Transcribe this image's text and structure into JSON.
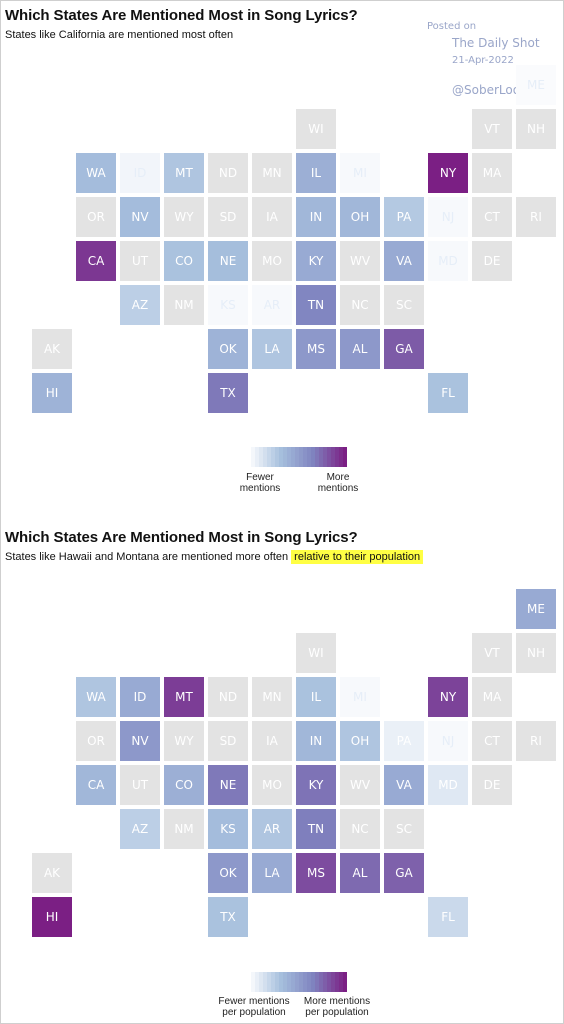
{
  "watermark": {
    "posted_on": "Posted on",
    "site": "The Daily Shot",
    "date": "21-Apr-2022",
    "handle": "@SoberLook"
  },
  "colors": {
    "gray": "#e3e3e3",
    "scale": [
      "#ffffff",
      "#a6bfdd",
      "#7f83bf",
      "#7b1f84"
    ]
  },
  "chart_data": [
    {
      "type": "heatmap",
      "title": "Which States Are Mentioned Most in Song Lyrics?",
      "subtitle": "States like California are mentioned most often",
      "highlight": "",
      "legend": {
        "low": "Fewer\nmentions",
        "high": "More\nmentions"
      },
      "values": {
        "ME": 0.02,
        "WI": null,
        "VT": null,
        "NH": null,
        "WA": 0.35,
        "ID": 0.05,
        "MT": 0.3,
        "ND": null,
        "MN": null,
        "IL": 0.42,
        "MI": 0.03,
        "NY": 1.0,
        "MA": null,
        "OR": null,
        "NV": 0.35,
        "WY": null,
        "SD": null,
        "IA": null,
        "IN": 0.38,
        "OH": 0.38,
        "PA": 0.28,
        "NJ": 0.03,
        "CT": null,
        "RI": null,
        "CA": 0.92,
        "UT": null,
        "CO": 0.32,
        "NE": 0.34,
        "MO": null,
        "KY": 0.45,
        "WV": null,
        "VA": 0.45,
        "MD": 0.03,
        "DE": null,
        "AZ": 0.25,
        "NM": null,
        "KS": 0.03,
        "AR": 0.03,
        "TN": 0.65,
        "NC": null,
        "SC": null,
        "AK": null,
        "OK": 0.4,
        "LA": 0.3,
        "MS": 0.55,
        "AL": 0.55,
        "GA": 0.8,
        "HI": 0.4,
        "TX": 0.7,
        "FL": 0.32
      }
    },
    {
      "type": "heatmap",
      "title": "Which States Are Mentioned Most in Song Lyrics?",
      "subtitle": "States like Hawaii and Montana are mentioned more often ",
      "highlight": "relative to their population",
      "legend": {
        "low": "Fewer mentions\nper population",
        "high": "More mentions\nper population"
      },
      "values": {
        "ME": 0.45,
        "WI": null,
        "VT": null,
        "NH": null,
        "WA": 0.3,
        "ID": 0.45,
        "MT": 0.9,
        "ND": null,
        "MN": null,
        "IL": 0.32,
        "MI": 0.03,
        "NY": 0.88,
        "MA": null,
        "OR": null,
        "NV": 0.55,
        "WY": null,
        "SD": null,
        "IA": null,
        "IN": 0.38,
        "OH": 0.3,
        "PA": 0.08,
        "NJ": 0.03,
        "CT": null,
        "RI": null,
        "CA": 0.38,
        "UT": null,
        "CO": 0.42,
        "NE": 0.7,
        "MO": null,
        "KY": 0.72,
        "WV": null,
        "VA": 0.45,
        "MD": 0.12,
        "DE": null,
        "AZ": 0.25,
        "NM": null,
        "KS": 0.35,
        "AR": 0.3,
        "TN": 0.68,
        "NC": null,
        "SC": null,
        "AK": null,
        "OK": 0.55,
        "LA": 0.45,
        "MS": 0.85,
        "AL": 0.75,
        "GA": 0.78,
        "HI": 1.0,
        "TX": 0.32,
        "FL": 0.2
      }
    }
  ]
}
